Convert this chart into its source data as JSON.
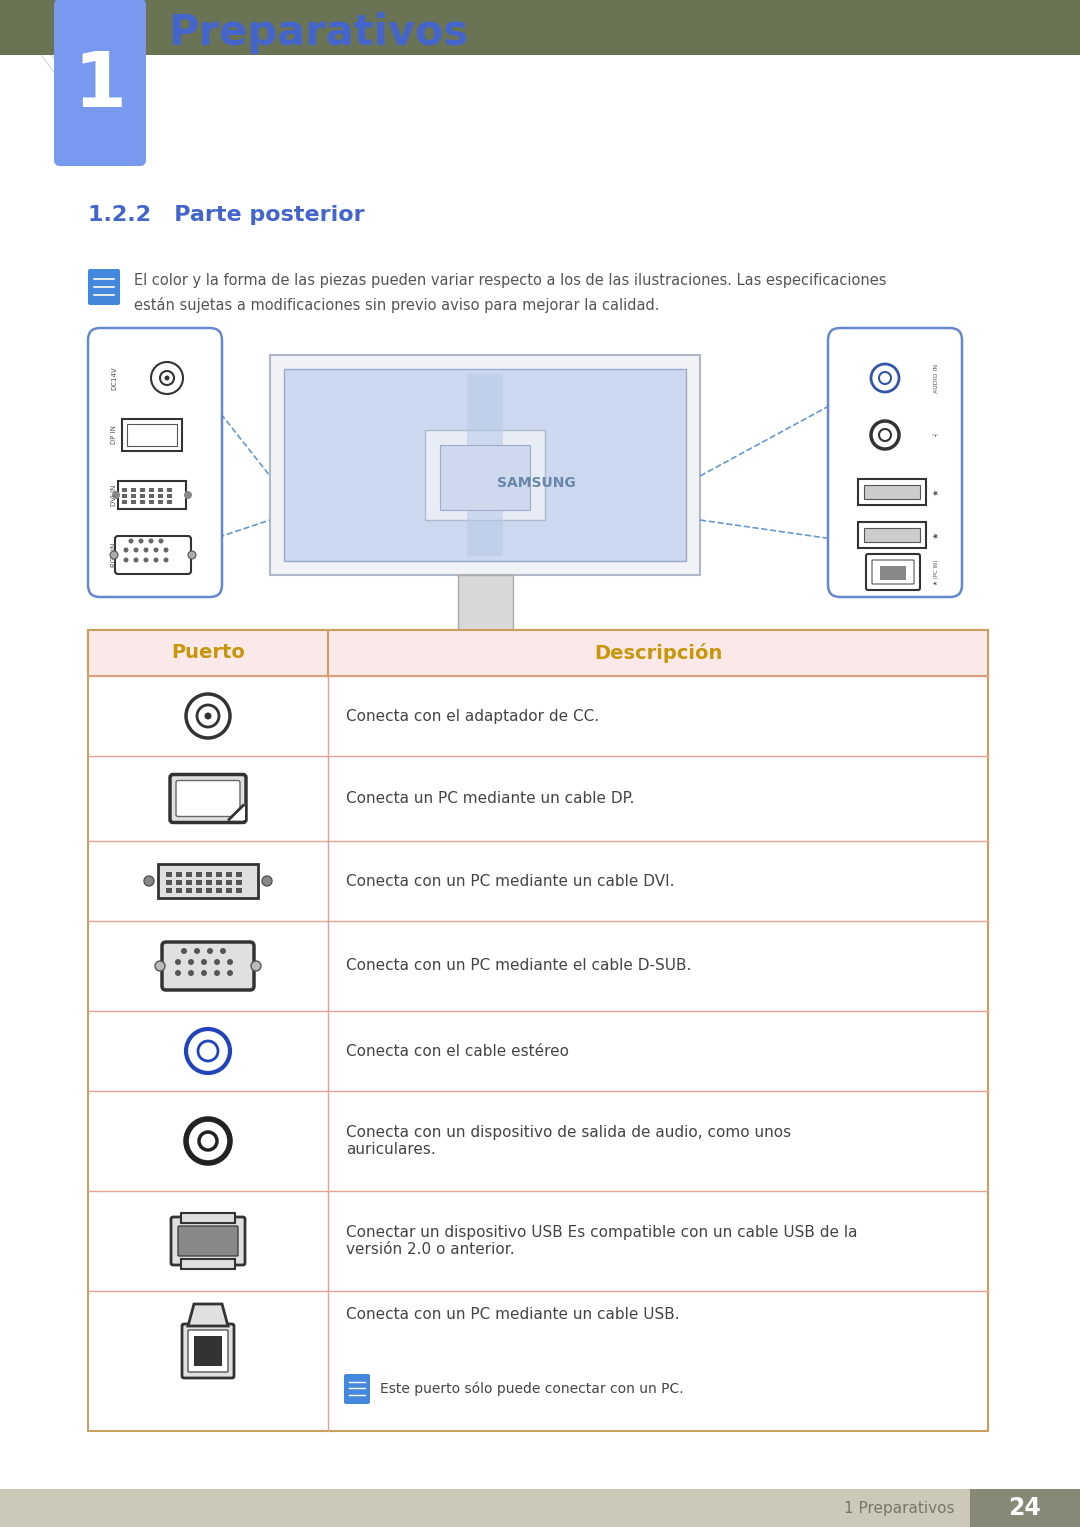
{
  "title": "Preparativos",
  "chapter_num": "1",
  "section": "1.2.2   Parte posterior",
  "note_text_line1": "El color y la forma de las piezas pueden variar respecto a los de las ilustraciones. Las especificaciones",
  "note_text_line2": "están sujetas a modificaciones sin previo aviso para mejorar la calidad.",
  "table_header": [
    "Puerto",
    "Descripción"
  ],
  "table_rows": [
    {
      "desc": "Conecta con el adaptador de CC."
    },
    {
      "desc": "Conecta un PC mediante un cable DP."
    },
    {
      "desc": "Conecta con un PC mediante un cable DVI."
    },
    {
      "desc": "Conecta con un PC mediante el cable D-SUB."
    },
    {
      "desc": "Conecta con el cable estéreo"
    },
    {
      "desc": "Conecta con un dispositivo de salida de audio, como unos\nauriculares."
    },
    {
      "desc": "Conectar un dispositivo USB Es compatible con un cable USB de la\nversión 2.0 o anterior."
    },
    {
      "desc": "Conecta con un PC mediante un cable USB.",
      "has_note": true,
      "note_text": "Este puerto sólo puede conectar con un PC."
    }
  ],
  "header_bg": "#fbe9e9",
  "header_text_color": "#c8960a",
  "row_border_color": "#e8a090",
  "table_border_color": "#c8a060",
  "bg_color": "#ffffff",
  "chapter_bar_color": "#6b7355",
  "chapter_tab_color": "#7799ee",
  "section_color": "#4466cc",
  "footer_bg": "#ccc9b8",
  "footer_text_color": "#777766",
  "footer_num_bg": "#888877",
  "footer_text": "1 Preparativos",
  "footer_num": "24",
  "panel_border_color": "#6688cc",
  "panel_fill": "#ffffff",
  "monitor_screen_color": "#ccd8f0",
  "dashed_color": "#6699cc",
  "note_icon_color": "#4488dd"
}
